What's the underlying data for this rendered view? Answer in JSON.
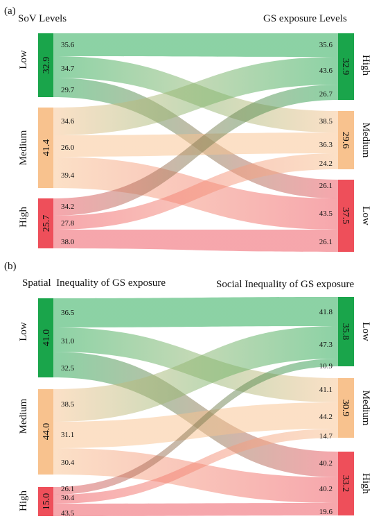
{
  "panels": [
    {
      "label": "(a)",
      "left_title": "SoV Levels",
      "right_title": "GS exposure Levels",
      "left_nodes": [
        {
          "name": "Low",
          "value": "32.9",
          "color": "#1aa54b"
        },
        {
          "name": "Medium",
          "value": "41.4",
          "color": "#f8c28e"
        },
        {
          "name": "High",
          "value": "25.7",
          "color": "#ee4f5a"
        }
      ],
      "right_nodes": [
        {
          "name": "High",
          "value": "32.9",
          "color": "#1aa54b"
        },
        {
          "name": "Medium",
          "value": "29.6",
          "color": "#f8c28e"
        },
        {
          "name": "Low",
          "value": "37.5",
          "color": "#ee4f5a"
        }
      ],
      "left_flow_labels": [
        "35.6",
        "34.7",
        "29.7",
        "34.6",
        "26.0",
        "39.4",
        "34.2",
        "27.8",
        "38.0"
      ],
      "right_flow_labels": [
        "35.6",
        "43.6",
        "26.7",
        "38.5",
        "36.3",
        "24.2",
        "26.1",
        "43.5",
        "26.1"
      ]
    },
    {
      "label": "(b)",
      "left_title": "Spatial  Inequality of GS exposure",
      "right_title": "Social Inequality of GS exposure",
      "left_nodes": [
        {
          "name": "Low",
          "value": "41.0",
          "color": "#1aa54b"
        },
        {
          "name": "Medium",
          "value": "44.0",
          "color": "#f8c28e"
        },
        {
          "name": "High",
          "value": "15.0",
          "color": "#ee4f5a"
        }
      ],
      "right_nodes": [
        {
          "name": "Low",
          "value": "35.8",
          "color": "#1aa54b"
        },
        {
          "name": "Medium",
          "value": "30.9",
          "color": "#f8c28e"
        },
        {
          "name": "High",
          "value": "33.2",
          "color": "#ee4f5a"
        }
      ],
      "left_flow_labels": [
        "36.5",
        "31.0",
        "32.5",
        "38.5",
        "31.1",
        "30.4",
        "26.1",
        "30.4",
        "43.5"
      ],
      "right_flow_labels": [
        "41.8",
        "47.3",
        "10.9",
        "41.1",
        "44.2",
        "14.7",
        "40.2",
        "40.2",
        "19.6"
      ]
    }
  ],
  "colors": {
    "green": "#1aa54b",
    "orange": "#f8c28e",
    "red": "#ee4f5a"
  }
}
